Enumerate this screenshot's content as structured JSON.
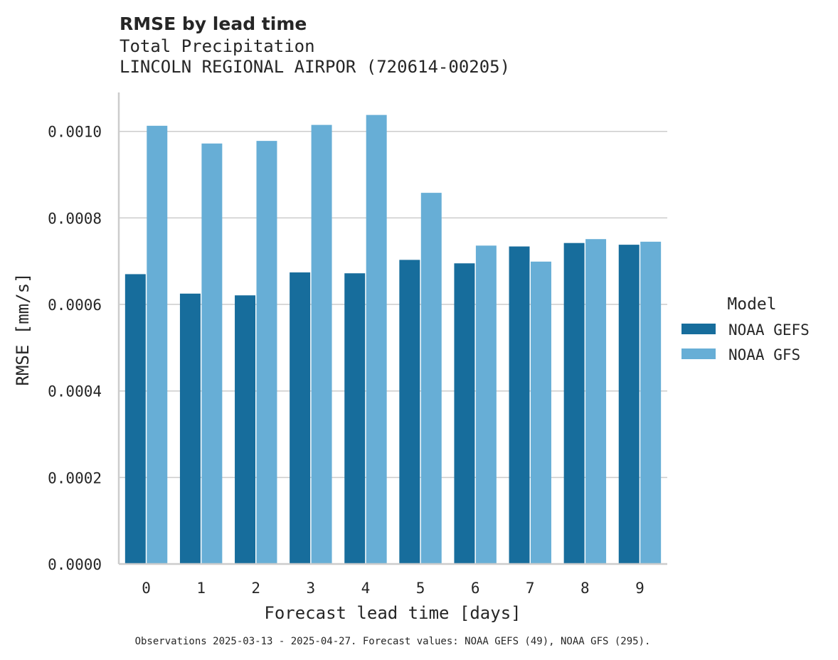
{
  "chart_data": {
    "type": "bar",
    "title": "RMSE by lead time",
    "subtitle_lines": [
      "Total Precipitation",
      "LINCOLN REGIONAL AIRPOR (720614-00205)"
    ],
    "xlabel": "Forecast lead time [days]",
    "ylabel": "RMSE [mm/s]",
    "categories": [
      "0",
      "1",
      "2",
      "3",
      "4",
      "5",
      "6",
      "7",
      "8",
      "9"
    ],
    "ylim": [
      0,
      0.00109
    ],
    "yticks": [
      "0.0000",
      "0.0002",
      "0.0004",
      "0.0006",
      "0.0008",
      "0.0010"
    ],
    "ytick_values": [
      0,
      0.0002,
      0.0004,
      0.0006,
      0.0008,
      0.001
    ],
    "grid": "horizontal",
    "legend": {
      "title": "Model",
      "placement": "right"
    },
    "series": [
      {
        "name": "NOAA GEFS",
        "color": "#176d9c",
        "values": [
          0.00067,
          0.000625,
          0.000621,
          0.000674,
          0.000672,
          0.000703,
          0.000695,
          0.000734,
          0.000742,
          0.000738
        ]
      },
      {
        "name": "NOAA GFS",
        "color": "#67aed6",
        "values": [
          0.001013,
          0.000972,
          0.000978,
          0.001015,
          0.001038,
          0.000858,
          0.000736,
          0.000699,
          0.000751,
          0.000745
        ]
      }
    ],
    "footnote": "Observations 2025-03-13 - 2025-04-27. Forecast values: NOAA GEFS (49), NOAA GFS (295)."
  }
}
